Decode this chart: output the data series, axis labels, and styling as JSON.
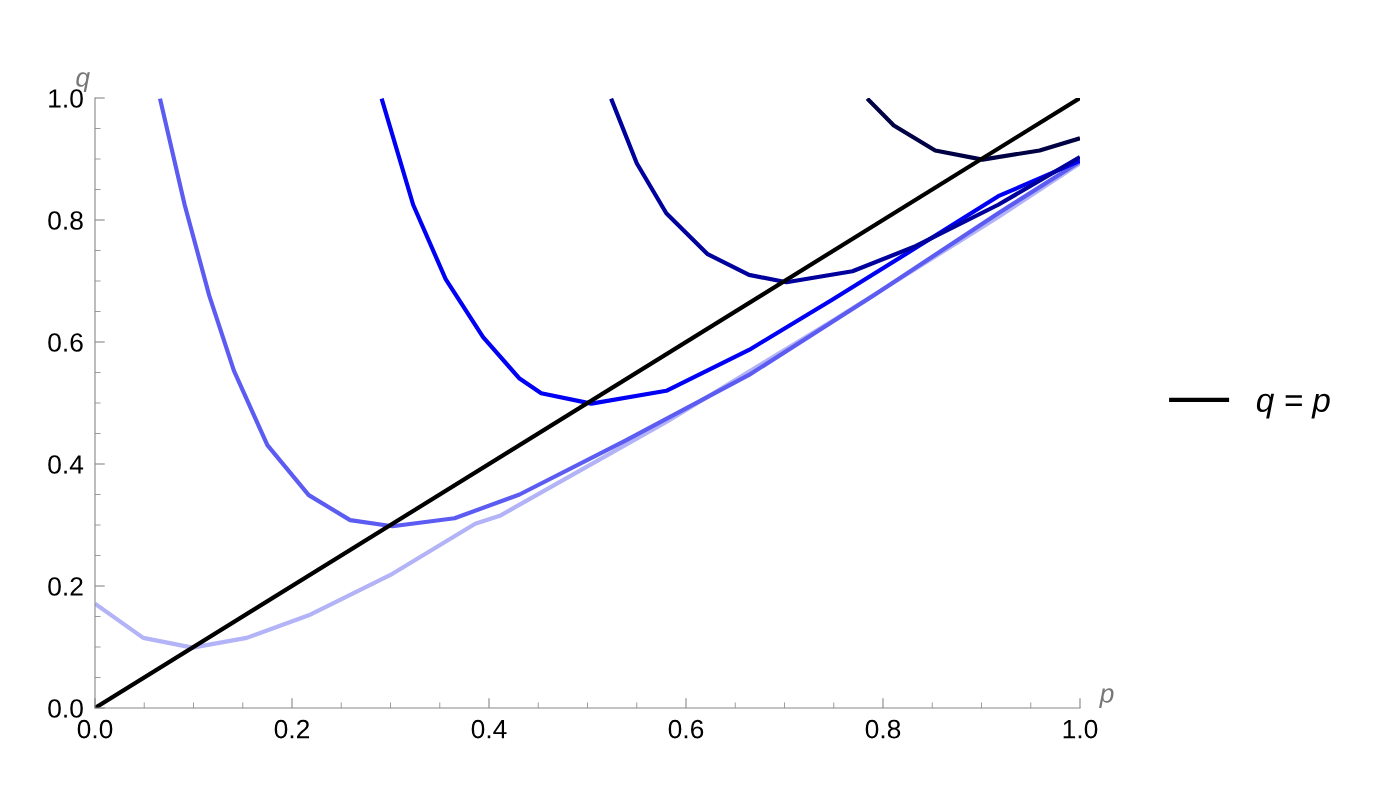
{
  "chart_data": {
    "type": "line",
    "xlabel": "p",
    "ylabel": "q",
    "series": [
      {
        "color": "#b3b3f8",
        "x": [
          0,
          0.049,
          0.099,
          0.154,
          0.217,
          0.302,
          0.386,
          0.411,
          0.58,
          0.748,
          0.917,
          1
        ],
        "values": [
          0.171,
          0.115,
          0.099,
          0.115,
          0.152,
          0.22,
          0.302,
          0.315,
          0.469,
          0.634,
          0.805,
          0.893
        ]
      },
      {
        "color": "#5c5cf2",
        "x": [
          0.066,
          0.091,
          0.116,
          0.141,
          0.175,
          0.217,
          0.259,
          0.302,
          0.365,
          0.431,
          0.538,
          0.664,
          0.79,
          0.917,
          1
        ],
        "values": [
          0.999,
          0.825,
          0.676,
          0.553,
          0.431,
          0.349,
          0.308,
          0.298,
          0.311,
          0.35,
          0.438,
          0.546,
          0.676,
          0.811,
          0.896
        ]
      },
      {
        "color": "#0000f5",
        "x": [
          0.291,
          0.323,
          0.356,
          0.394,
          0.431,
          0.453,
          0.504,
          0.58,
          0.664,
          0.748,
          0.833,
          0.917,
          1
        ],
        "values": [
          0.999,
          0.825,
          0.703,
          0.608,
          0.54,
          0.516,
          0.499,
          0.52,
          0.587,
          0.669,
          0.754,
          0.839,
          0.897
        ]
      },
      {
        "color": "#00009c",
        "x": [
          0.524,
          0.55,
          0.58,
          0.622,
          0.664,
          0.702,
          0.769,
          0.833,
          0.917,
          1
        ],
        "values": [
          0.999,
          0.893,
          0.811,
          0.744,
          0.71,
          0.698,
          0.716,
          0.757,
          0.825,
          0.903
        ]
      },
      {
        "color": "#000044",
        "x": [
          0.784,
          0.811,
          0.853,
          0.901,
          0.959,
          1
        ],
        "values": [
          0.999,
          0.955,
          0.914,
          0.899,
          0.914,
          0.934
        ]
      },
      {
        "name": "q = p",
        "color": "#000000",
        "x": [
          0,
          1
        ],
        "values": [
          0,
          1
        ]
      }
    ],
    "xlim": [
      0,
      1
    ],
    "ylim": [
      0,
      1
    ],
    "xticks": [
      {
        "value": 0,
        "label": "0.0"
      },
      0.2,
      0.4,
      0.6,
      0.8,
      {
        "value": 1,
        "label": "1.0"
      },
      {
        "value": 0.05,
        "label": null
      },
      {
        "value": 0.1,
        "label": null
      },
      {
        "value": 0.15,
        "label": null
      },
      {
        "value": 0.25,
        "label": null
      },
      {
        "value": 0.3,
        "label": null
      },
      {
        "value": 0.35,
        "label": null
      },
      {
        "value": 0.45,
        "label": null
      },
      {
        "value": 0.5,
        "label": null
      },
      {
        "value": 0.55,
        "label": null
      },
      {
        "value": 0.65,
        "label": null
      },
      {
        "value": 0.7,
        "label": null
      },
      {
        "value": 0.75,
        "label": null
      },
      {
        "value": 0.85,
        "label": null
      },
      {
        "value": 0.9,
        "label": null
      },
      {
        "value": 0.95,
        "label": null
      }
    ],
    "yticks": [
      {
        "value": 0,
        "label": "0.0"
      },
      0.2,
      0.4,
      0.6,
      0.8,
      {
        "value": 1,
        "label": "1.0"
      },
      {
        "value": 0.05,
        "label": null
      },
      {
        "value": 0.1,
        "label": null
      },
      {
        "value": 0.15,
        "label": null
      },
      {
        "value": 0.25,
        "label": null
      },
      {
        "value": 0.3,
        "label": null
      },
      {
        "value": 0.35,
        "label": null
      },
      {
        "value": 0.45,
        "label": null
      },
      {
        "value": 0.5,
        "label": null
      },
      {
        "value": 0.55,
        "label": null
      },
      {
        "value": 0.65,
        "label": null
      },
      {
        "value": 0.7,
        "label": null
      },
      {
        "value": 0.75,
        "label": null
      },
      {
        "value": 0.85,
        "label": null
      },
      {
        "value": 0.9,
        "label": null
      },
      {
        "value": 0.95,
        "label": null
      }
    ],
    "grid": false,
    "legend": "right",
    "marker": "none",
    "line_style": "solid"
  }
}
